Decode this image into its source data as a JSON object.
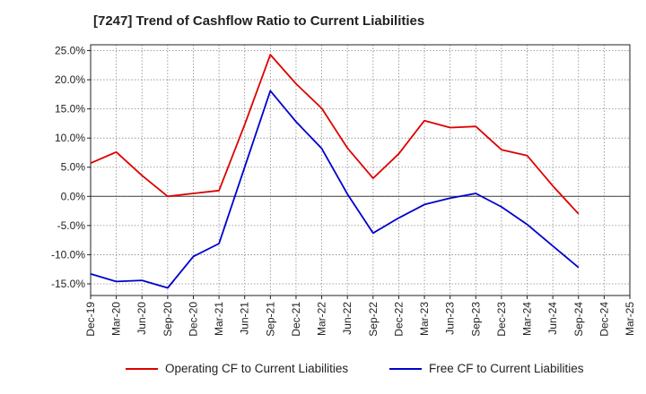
{
  "chart_data": {
    "type": "line",
    "title": "[7247]  Trend of Cashflow Ratio to Current Liabilities",
    "xlabel": "",
    "ylabel": "",
    "categories": [
      "Dec-19",
      "Mar-20",
      "Jun-20",
      "Sep-20",
      "Dec-20",
      "Mar-21",
      "Jun-21",
      "Sep-21",
      "Dec-21",
      "Mar-22",
      "Jun-22",
      "Sep-22",
      "Dec-22",
      "Mar-23",
      "Jun-23",
      "Sep-23",
      "Dec-23",
      "Mar-24",
      "Jun-24",
      "Sep-24",
      "Dec-24",
      "Mar-25"
    ],
    "ylim": [
      -17,
      26
    ],
    "yticks": [
      25,
      20,
      15,
      10,
      5,
      0,
      -5,
      -10,
      -15
    ],
    "ytick_labels": [
      "25.0%",
      "20.0%",
      "15.0%",
      "10.0%",
      "5.0%",
      "0.0%",
      "-5.0%",
      "-10.0%",
      "-15.0%"
    ],
    "grid": true,
    "legend_position": "bottom",
    "series": [
      {
        "name": "Operating CF to Current Liabilities",
        "color": "#dd0000",
        "values": [
          5.7,
          7.6,
          3.6,
          0.0,
          0.5,
          1.0,
          12.3,
          24.3,
          19.3,
          15.1,
          8.3,
          3.1,
          7.3,
          13.0,
          11.8,
          12.0,
          8.0,
          7.0,
          1.8,
          -3.0,
          null,
          null
        ]
      },
      {
        "name": "Free CF to Current Liabilities",
        "color": "#0000cc",
        "values": [
          -13.3,
          -14.6,
          -14.4,
          -15.7,
          -10.3,
          -8.1,
          5.0,
          18.1,
          12.8,
          8.2,
          0.4,
          -6.3,
          -3.7,
          -1.4,
          -0.3,
          0.5,
          -1.8,
          -4.8,
          -8.5,
          -12.2,
          null,
          null
        ]
      }
    ]
  }
}
